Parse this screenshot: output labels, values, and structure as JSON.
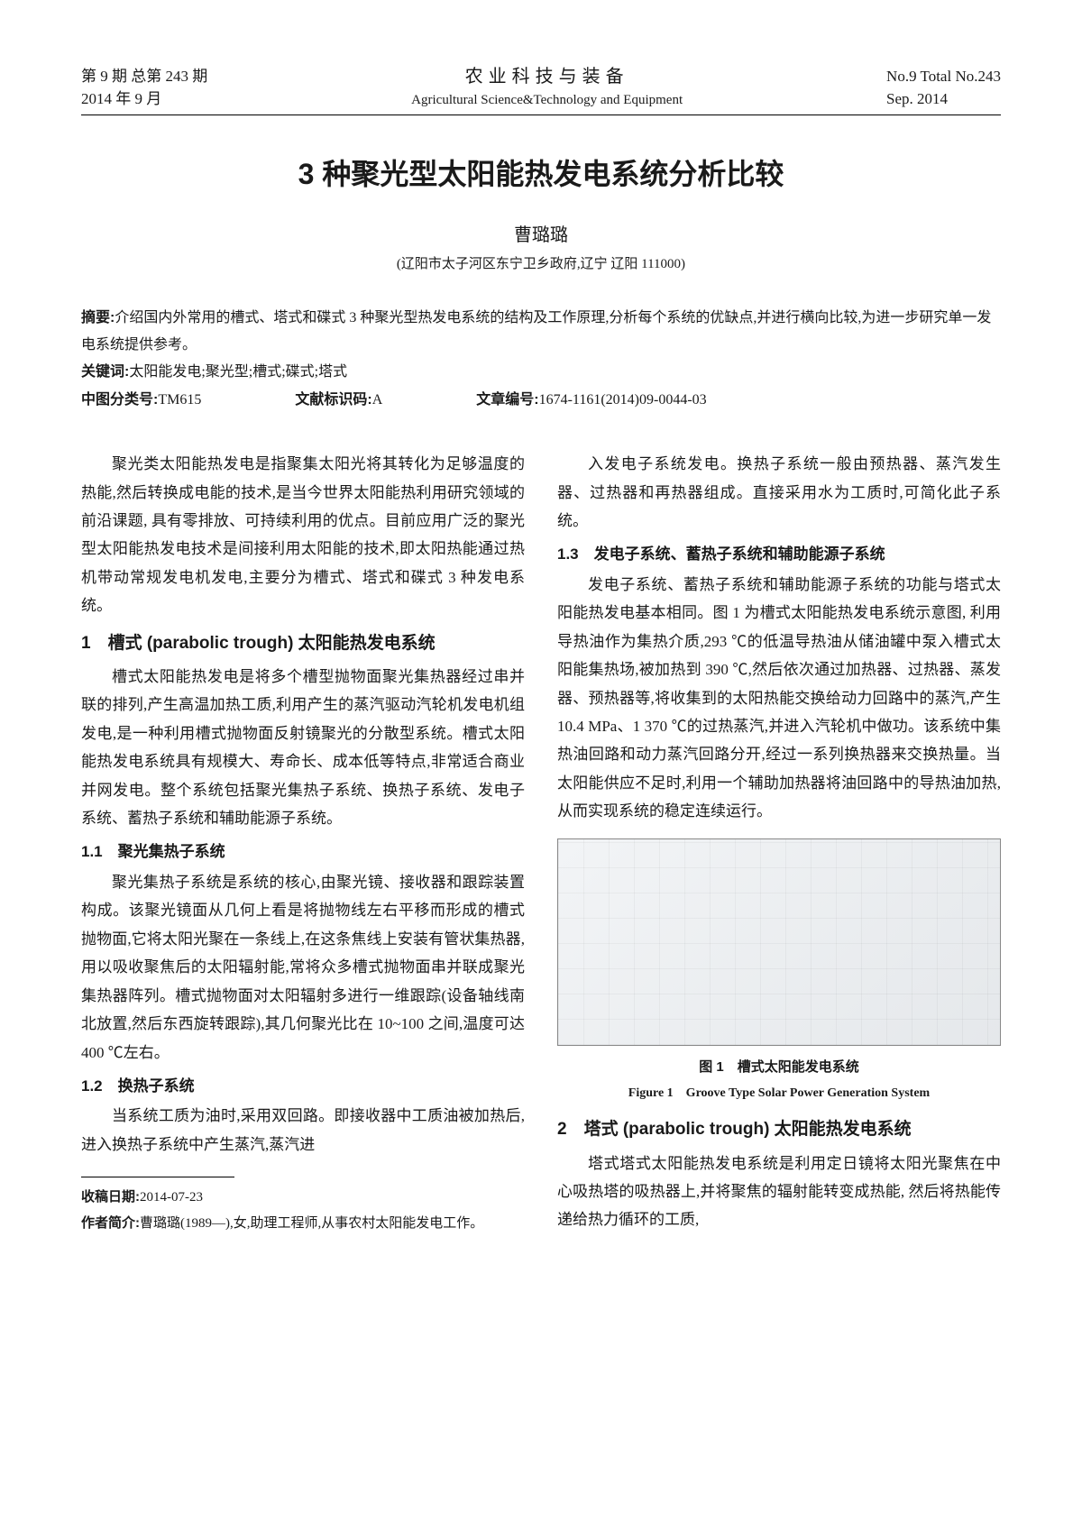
{
  "header": {
    "left_line1": "第 9 期 总第 243 期",
    "left_line2": "2014 年 9 月",
    "center_cn": "农业科技与装备",
    "center_en": "Agricultural Science&Technology and Equipment",
    "right_line1": "No.9 Total No.243",
    "right_line2": "Sep. 2014"
  },
  "title": "3 种聚光型太阳能热发电系统分析比较",
  "author": "曹璐璐",
  "affiliation": "(辽阳市太子河区东宁卫乡政府,辽宁 辽阳 111000)",
  "abstract": {
    "label": "摘要:",
    "text": "介绍国内外常用的槽式、塔式和碟式 3 种聚光型热发电系统的结构及工作原理,分析每个系统的优缺点,并进行横向比较,为进一步研究单一发电系统提供参考。"
  },
  "keywords": {
    "label": "关键词:",
    "text": "太阳能发电;聚光型;槽式;碟式;塔式"
  },
  "classline": {
    "clc_label": "中图分类号:",
    "clc": "TM615",
    "doc_label": "文献标识码:",
    "doc": "A",
    "artno_label": "文章编号:",
    "artno": "1674-1161(2014)09-0044-03"
  },
  "body": {
    "intro": "聚光类太阳能热发电是指聚集太阳光将其转化为足够温度的热能,然后转换成电能的技术,是当今世界太阳能热利用研究领域的前沿课题, 具有零排放、可持续利用的优点。目前应用广泛的聚光型太阳能热发电技术是间接利用太阳能的技术,即太阳热能通过热机带动常规发电机发电,主要分为槽式、塔式和碟式 3 种发电系统。",
    "s1_title": "1　槽式 (parabolic trough) 太阳能热发电系统",
    "s1_p1": "槽式太阳能热发电是将多个槽型抛物面聚光集热器经过串并联的排列,产生高温加热工质,利用产生的蒸汽驱动汽轮机发电机组发电,是一种利用槽式抛物面反射镜聚光的分散型系统。槽式太阳能热发电系统具有规模大、寿命长、成本低等特点,非常适合商业并网发电。整个系统包括聚光集热子系统、换热子系统、发电子系统、蓄热子系统和辅助能源子系统。",
    "s11_title": "1.1　聚光集热子系统",
    "s11_p1": "聚光集热子系统是系统的核心,由聚光镜、接收器和跟踪装置构成。该聚光镜面从几何上看是将抛物线左右平移而形成的槽式抛物面,它将太阳光聚在一条线上,在这条焦线上安装有管状集热器,用以吸收聚焦后的太阳辐射能,常将众多槽式抛物面串并联成聚光集热器阵列。槽式抛物面对太阳辐射多进行一维跟踪(设备轴线南北放置,然后东西旋转跟踪),其几何聚光比在 10~100 之间,温度可达 400 ℃左右。",
    "s12_title": "1.2　换热子系统",
    "s12_p1": "当系统工质为油时,采用双回路。即接收器中工质油被加热后,进入换热子系统中产生蒸汽,蒸汽进",
    "col2_p1": "入发电子系统发电。换热子系统一般由预热器、蒸汽发生器、过热器和再热器组成。直接采用水为工质时,可简化此子系统。",
    "s13_title": "1.3　发电子系统、蓄热子系统和辅助能源子系统",
    "s13_p1": "发电子系统、蓄热子系统和辅助能源子系统的功能与塔式太阳能热发电基本相同。图 1 为槽式太阳能热发电系统示意图, 利用导热油作为集热介质,293 ℃的低温导热油从储油罐中泵入槽式太阳能集热场,被加热到 390 ℃,然后依次通过加热器、过热器、蒸发器、预热器等,将收集到的太阳热能交换给动力回路中的蒸汽,产生 10.4 MPa、1 370 ℃的过热蒸汽,并进入汽轮机中做功。该系统中集热油回路和动力蒸汽回路分开,经过一系列换热器来交换热量。当太阳能供应不足时,利用一个辅助加热器将油回路中的导热油加热,从而实现系统的稳定连续运行。",
    "fig1_cn": "图 1　槽式太阳能发电系统",
    "fig1_en": "Figure 1　Groove Type Solar Power Generation System",
    "s2_title": "2　塔式 (parabolic trough) 太阳能热发电系统",
    "s2_p1": "塔式塔式太阳能热发电系统是利用定日镜将太阳光聚焦在中心吸热塔的吸热器上,并将聚焦的辐射能转变成热能, 然后将热能传递给热力循环的工质,"
  },
  "footnote": {
    "recv_label": "收稿日期:",
    "recv": "2014-07-23",
    "author_label": "作者简介:",
    "author": "曹璐璐(1989—),女,助理工程师,从事农村太阳能发电工作。"
  }
}
